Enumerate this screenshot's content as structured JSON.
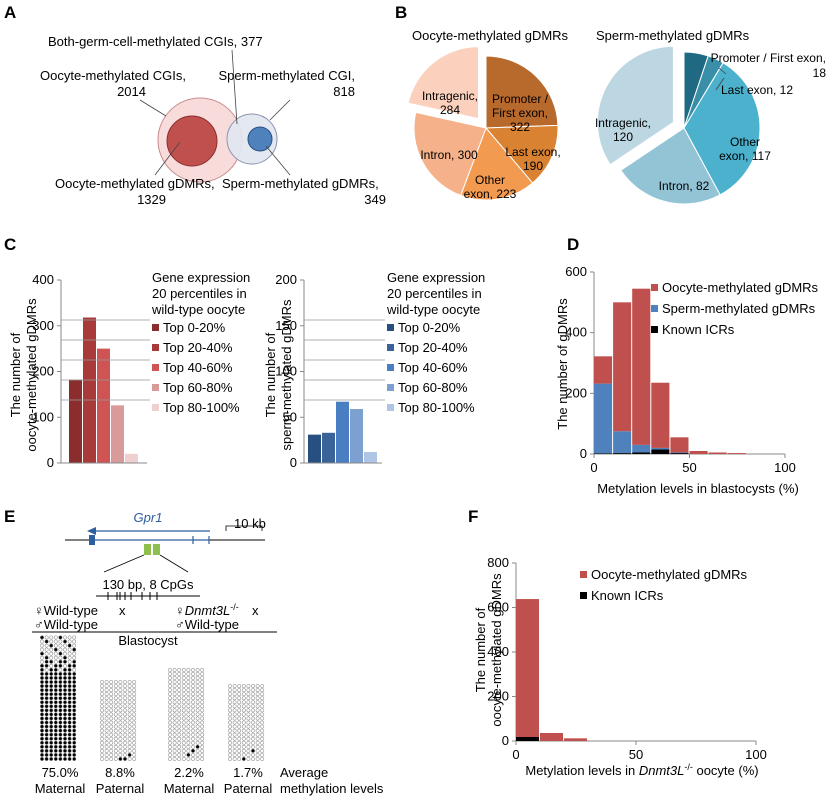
{
  "colors": {
    "oocyte_red": "#c0504d",
    "sperm_blue": "#4f81bd",
    "icr_black": "#000000",
    "oocyte_light_circle": "#f8dcdc",
    "sperm_light_circle": "#e2e6f0",
    "pie_oocyte": [
      "#b8692c",
      "#d98232",
      "#f29a50",
      "#f5b28a",
      "#fbd0bc"
    ],
    "pie_sperm": [
      "#1f6a82",
      "#3a8fa8",
      "#4bb1cd",
      "#93c4d6",
      "#bcd6e2"
    ],
    "hist_oocyte": [
      "#8c2d2d",
      "#a93a3a",
      "#d05454",
      "#d99a9a",
      "#efcfd0"
    ],
    "hist_sperm": [
      "#274f80",
      "#3a6499",
      "#4a7ec2",
      "#7ca0d0",
      "#aec5e3"
    ]
  },
  "panels": {
    "A": {
      "letter": "A",
      "labels": {
        "both": "Both-germ-cell-methylated CGIs, 377",
        "oocyte_cgi_1": "Oocyte-methylated CGIs,",
        "oocyte_cgi_2": "2014",
        "sperm_cgi_1": "Sperm-methylated CGI,",
        "sperm_cgi_2": "818",
        "oocyte_gdmr_1": "Oocyte-methylated gDMRs,",
        "oocyte_gdmr_2": "1329",
        "sperm_gdmr_1": "Sperm-methylated gDMRs,",
        "sperm_gdmr_2": "349"
      },
      "venn_counts": {
        "oocyte_cgi": 2014,
        "sperm_cgi": 818,
        "both_cgi": 377,
        "oocyte_gdmr": 1329,
        "sperm_gdmr": 349
      }
    },
    "B": {
      "letter": "B",
      "oocyte_title": "Oocyte-methylated gDMRs",
      "sperm_title": "Sperm-methylated gDMRs",
      "oocyte_labels": {
        "promoter_1": "Promoter /",
        "promoter_2": "First exon,",
        "promoter_3": "322",
        "last_1": "Last exon,",
        "last_2": "190",
        "other_1": "Other",
        "other_2": "exon, 223",
        "intron_1": "Intron, 300",
        "intragenic_1": "Intragenic,",
        "intragenic_2": "284"
      },
      "sperm_labels": {
        "promoter_1": "Promoter / First exon,",
        "promoter_2": "18",
        "last_1": "Last exon, 12",
        "other_1": "Other",
        "other_2": "exon, 117",
        "intron_1": "Intron, 82",
        "intragenic_1": "Intragenic,",
        "intragenic_2": "120"
      }
    },
    "C": {
      "letter": "C",
      "oocyte_ylabel_1": "The number of",
      "oocyte_ylabel_2": "oocyte-methylated gDMRs",
      "sperm_ylabel_1": "The number of",
      "sperm_ylabel_2": "sperm-methylated gDMRs",
      "legend_title_1": "Gene expression",
      "legend_title_2": "20 percentiles in",
      "legend_title_3": "wild-type oocyte"
    },
    "D": {
      "letter": "D",
      "xlabel": "Metylation levels in blastocysts (%)",
      "ylabel": "The number of gDMRs"
    },
    "E": {
      "letter": "E",
      "gene": "Gpr1",
      "scale": "10 kb",
      "cpg_label": "130 bp, 8 CpGs",
      "cross1_female": "♀Wild-type",
      "cross1_x": "x",
      "cross1_male": "♂Wild-type",
      "cross2_female": "♀",
      "cross2_female_italic": "Dnmt3L",
      "cross2_female_sup": "-/-",
      "cross2_x": "x",
      "cross2_male": "♂Wild-type",
      "stage": "Blastocyst",
      "average_label_1": "Average",
      "average_label_2": "methylation levels",
      "columns": [
        {
          "percent": "75.0%",
          "allele": "Maternal",
          "rows": 31,
          "methylated_fraction": 0.75
        },
        {
          "percent": "8.8%",
          "allele": "Paternal",
          "rows": 20,
          "methylated_fraction": 0.088
        },
        {
          "percent": "2.2%",
          "allele": "Maternal",
          "rows": 23,
          "methylated_fraction": 0.022
        },
        {
          "percent": "1.7%",
          "allele": "Paternal",
          "rows": 19,
          "methylated_fraction": 0.017
        }
      ]
    },
    "F": {
      "letter": "F",
      "xlabel_prefix": "Metylation levels in ",
      "xlabel_italic": "Dnmt3L",
      "xlabel_sup": "-/-",
      "xlabel_suffix": " oocyte (%)",
      "ylabel_1": "The number of",
      "ylabel_2": "oocyte-methylated gDMRs"
    }
  },
  "chart_data": [
    {
      "id": "B-oocyte",
      "type": "pie",
      "title": "Oocyte-methylated gDMRs",
      "categories": [
        "Promoter / First exon",
        "Last exon",
        "Other exon",
        "Intron",
        "Intragenic"
      ],
      "values": [
        322,
        190,
        223,
        300,
        284
      ],
      "exploded": "Intragenic"
    },
    {
      "id": "B-sperm",
      "type": "pie",
      "title": "Sperm-methylated gDMRs",
      "categories": [
        "Promoter / First exon",
        "Last exon",
        "Other exon",
        "Intron",
        "Intragenic"
      ],
      "values": [
        18,
        12,
        117,
        82,
        120
      ],
      "exploded": "Intragenic"
    },
    {
      "id": "C-oocyte",
      "type": "bar",
      "categories": [
        "Top 0-20%",
        "Top 20-40%",
        "Top 40-60%",
        "Top 60-80%",
        "Top 80-100%"
      ],
      "values": [
        182,
        318,
        250,
        126,
        20
      ],
      "yticks": [
        0,
        100,
        200,
        300,
        400
      ],
      "ylim": [
        0,
        400
      ],
      "ylabel": "The number of oocyte-methylated gDMRs",
      "legend_title": "Gene expression 20 percentiles in wild-type oocyte",
      "legend": "right"
    },
    {
      "id": "C-sperm",
      "type": "bar",
      "categories": [
        "Top 0-20%",
        "Top 20-40%",
        "Top 40-60%",
        "Top 60-80%",
        "Top 80-100%"
      ],
      "values": [
        31,
        33,
        67,
        59,
        12
      ],
      "yticks": [
        0,
        50,
        100,
        150,
        200
      ],
      "ylim": [
        0,
        200
      ],
      "ylabel": "The number of sperm-methylated gDMRs",
      "legend_title": "Gene expression 20 percentiles in wild-type oocyte",
      "legend": "right"
    },
    {
      "id": "D",
      "type": "bar",
      "stacked": true,
      "x": [
        5,
        15,
        25,
        35,
        45,
        55,
        65,
        75
      ],
      "series": [
        {
          "name": "Oocyte-methylated gDMRs",
          "values": [
            90,
            425,
            515,
            215,
            50,
            10,
            5,
            3
          ]
        },
        {
          "name": "Sperm-methylated gDMRs",
          "values": [
            230,
            72,
            25,
            5,
            2,
            0,
            0,
            0
          ]
        },
        {
          "name": "Known ICRs",
          "values": [
            2,
            3,
            5,
            15,
            3,
            0,
            0,
            0
          ]
        }
      ],
      "xticks": [
        0,
        50,
        100
      ],
      "yticks": [
        0,
        200,
        400,
        600
      ],
      "xlim": [
        0,
        100
      ],
      "ylim": [
        0,
        600
      ],
      "xlabel": "Metylation levels in blastocysts (%)",
      "ylabel": "The number of gDMRs",
      "legend": "top-right"
    },
    {
      "id": "F",
      "type": "bar",
      "stacked": true,
      "x": [
        5,
        15,
        25
      ],
      "series": [
        {
          "name": "Oocyte-methylated gDMRs",
          "values": [
            620,
            36,
            12
          ]
        },
        {
          "name": "Known ICRs",
          "values": [
            18,
            0,
            0
          ]
        }
      ],
      "xticks": [
        0,
        50,
        100
      ],
      "yticks": [
        0,
        200,
        400,
        600,
        800
      ],
      "xlim": [
        0,
        100
      ],
      "ylim": [
        0,
        800
      ],
      "xlabel": "Metylation levels in Dnmt3L-/- oocyte (%)",
      "ylabel": "The number of oocyte-methylated gDMRs",
      "legend": "top-right"
    }
  ]
}
